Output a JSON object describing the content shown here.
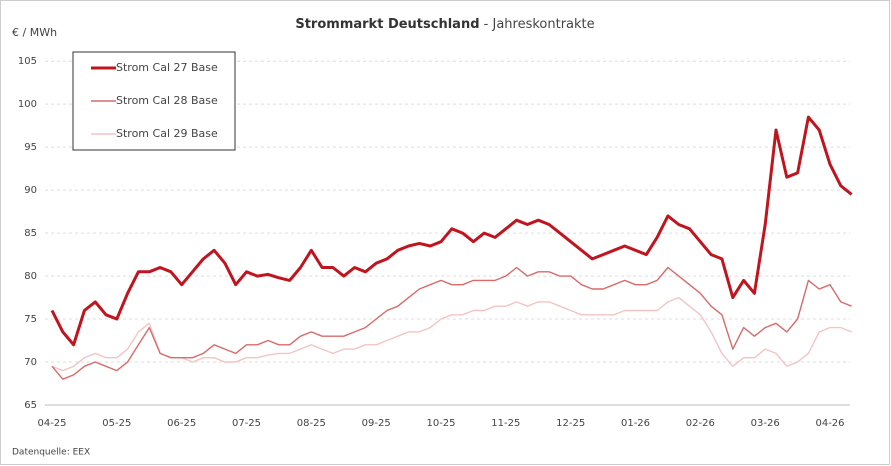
{
  "chart_data": {
    "type": "line",
    "title": "Strommarkt Deutschland",
    "subtitle": "- Jahreskontrakte",
    "y_axis_label": "€ / MWh",
    "source": "Datenquelle: EEX",
    "categories": [
      "04-25",
      null,
      null,
      null,
      null,
      null,
      "05-25",
      null,
      null,
      null,
      null,
      null,
      "06-25",
      null,
      null,
      null,
      null,
      null,
      "07-25",
      null,
      null,
      null,
      null,
      null,
      "08-25",
      null,
      null,
      null,
      null,
      null,
      "09-25",
      null,
      null,
      null,
      null,
      null,
      "10-25",
      null,
      null,
      null,
      null,
      null,
      "11-25",
      null,
      null,
      null,
      null,
      null,
      "12-25",
      null,
      null,
      null,
      null,
      null,
      "01-26",
      null,
      null,
      null,
      null,
      null,
      "02-26",
      null,
      null,
      null,
      null,
      null,
      "03-26",
      null,
      null,
      null,
      null,
      null,
      "04-26",
      null,
      null
    ],
    "series": [
      {
        "name": "Strom Cal 27 Base",
        "color": "#c0151f",
        "width": 3,
        "values": [
          76,
          73.5,
          72,
          76,
          77,
          75.5,
          75,
          78,
          80.5,
          80.5,
          81,
          80.5,
          79,
          80.5,
          82,
          83,
          81.5,
          79,
          80.5,
          80,
          80.2,
          79.8,
          79.5,
          81,
          83,
          81,
          81,
          80,
          81,
          80.5,
          81.5,
          82,
          83,
          83.5,
          83.8,
          83.5,
          84,
          85.5,
          85,
          84,
          85,
          84.5,
          85.5,
          86.5,
          86,
          86.5,
          86,
          85,
          84,
          83,
          82,
          82.5,
          83,
          83.5,
          83,
          82.5,
          84.5,
          87,
          86,
          85.5,
          84,
          82.5,
          82,
          77.5,
          79.5,
          78,
          86,
          97,
          91.5,
          92,
          98.5,
          97,
          93,
          90.5,
          89.5
        ]
      },
      {
        "name": "Strom Cal 28 Base",
        "color": "#d96a6a",
        "width": 1.4,
        "values": [
          69.5,
          68,
          68.5,
          69.5,
          70,
          69.5,
          69,
          70,
          72,
          74,
          71,
          70.5,
          70.5,
          70.5,
          71,
          72,
          71.5,
          71,
          72,
          72,
          72.5,
          72,
          72,
          73,
          73.5,
          73,
          73,
          73,
          73.5,
          74,
          75,
          76,
          76.5,
          77.5,
          78.5,
          79,
          79.5,
          79,
          79,
          79.5,
          79.5,
          79.5,
          80,
          81,
          80,
          80.5,
          80.5,
          80,
          80,
          79,
          78.5,
          78.5,
          79,
          79.5,
          79,
          79,
          79.5,
          81,
          80,
          79,
          78,
          76.5,
          75.5,
          71.5,
          74,
          73,
          74,
          74.5,
          73.5,
          75,
          79.5,
          78.5,
          79,
          77,
          76.5
        ]
      },
      {
        "name": "Strom Cal 29 Base",
        "color": "#f3c4c4",
        "width": 1.4,
        "values": [
          69.5,
          69,
          69.5,
          70.5,
          71,
          70.5,
          70.5,
          71.5,
          73.5,
          74.5,
          71,
          70.5,
          70.5,
          70,
          70.5,
          70.5,
          70,
          70,
          70.5,
          70.5,
          70.8,
          71,
          71,
          71.5,
          72,
          71.5,
          71,
          71.5,
          71.5,
          72,
          72,
          72.5,
          73,
          73.5,
          73.5,
          74,
          75,
          75.5,
          75.5,
          76,
          76,
          76.5,
          76.5,
          77,
          76.5,
          77,
          77,
          76.5,
          76,
          75.5,
          75.5,
          75.5,
          75.5,
          76,
          76,
          76,
          76,
          77,
          77.5,
          76.5,
          75.5,
          73.5,
          71,
          69.5,
          70.5,
          70.5,
          71.5,
          71,
          69.5,
          70,
          71,
          73.5,
          74,
          74,
          73.5
        ]
      }
    ],
    "ylim": [
      65,
      107
    ],
    "yticks": [
      65,
      70,
      75,
      80,
      85,
      90,
      95,
      100,
      105
    ],
    "grid": true,
    "legend": "upper left"
  }
}
